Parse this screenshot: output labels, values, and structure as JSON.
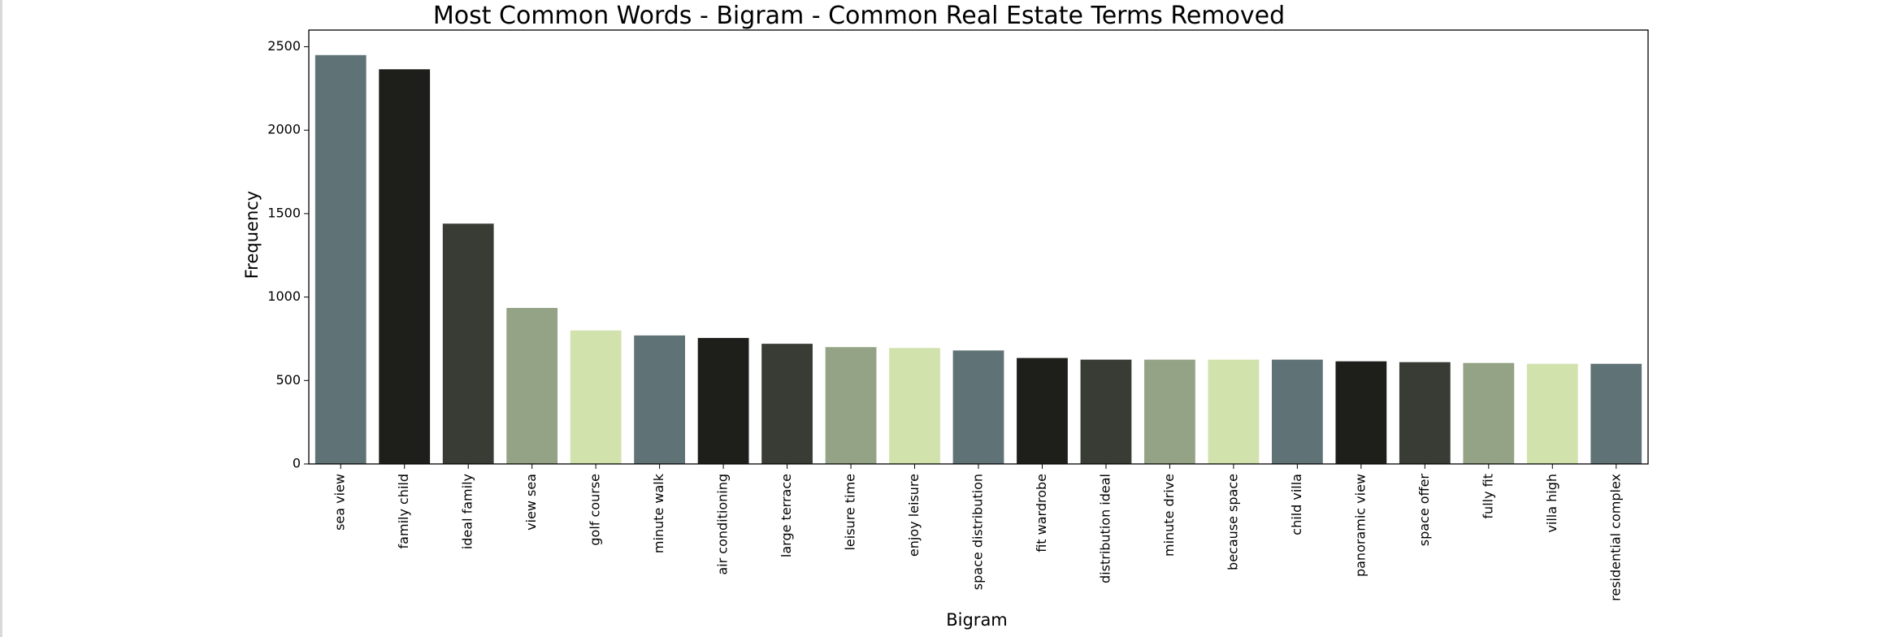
{
  "chart_data": {
    "type": "bar",
    "title": "Most Common Words - Bigram - Common Real Estate Terms Removed",
    "xlabel": "Bigram",
    "ylabel": "Frequency",
    "ylim": [
      0,
      2600
    ],
    "yticks": [
      0,
      500,
      1000,
      1500,
      2000,
      2500
    ],
    "grid": false,
    "categories": [
      "sea view",
      "family child",
      "ideal family",
      "view sea",
      "golf course",
      "minute walk",
      "air conditioning",
      "large terrace",
      "leisure time",
      "enjoy leisure",
      "space distribution",
      "fit wardrobe",
      "distribution ideal",
      "minute drive",
      "because space",
      "child villa",
      "panoramic view",
      "space offer",
      "fully fit",
      "villa high",
      "residential complex"
    ],
    "values": [
      2450,
      2365,
      1440,
      935,
      800,
      770,
      755,
      720,
      700,
      695,
      680,
      635,
      625,
      625,
      625,
      625,
      615,
      610,
      605,
      600,
      600
    ],
    "palette": [
      "#5f7275",
      "#1e1f1a",
      "#393c35",
      "#94a385",
      "#d2e2ad"
    ]
  }
}
